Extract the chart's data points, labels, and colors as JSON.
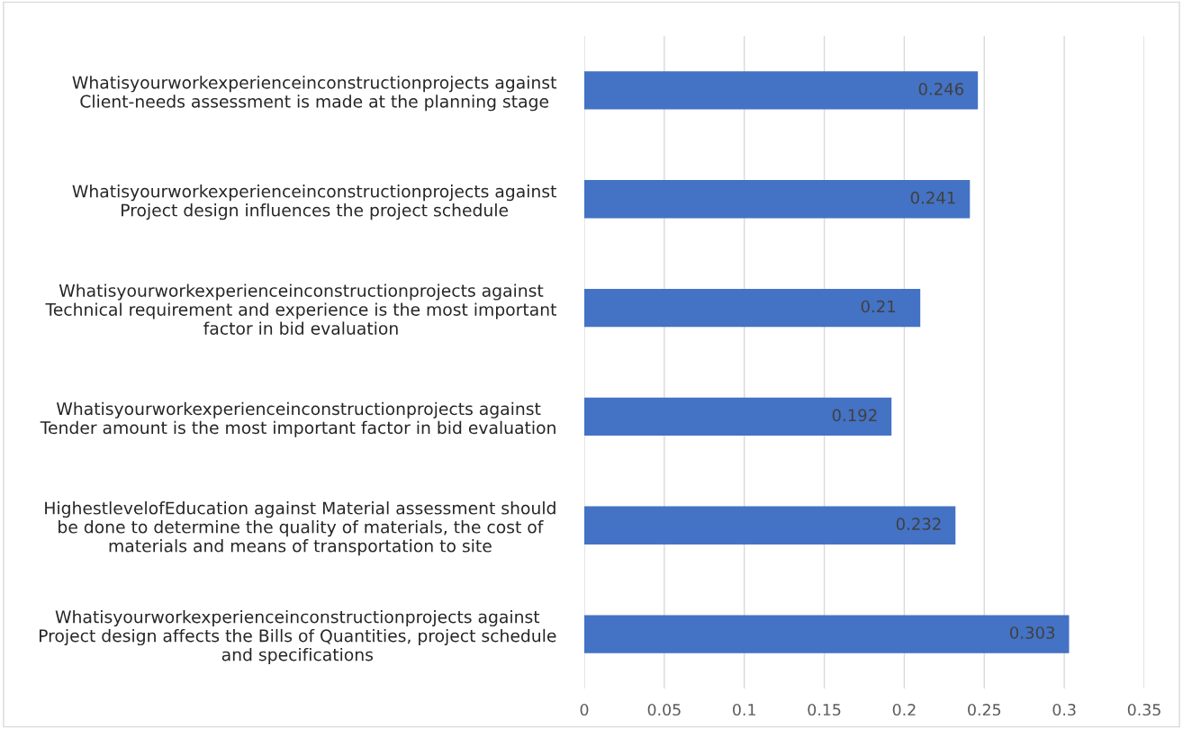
{
  "chart_data": {
    "type": "bar",
    "orientation": "horizontal",
    "categories": [
      "Whatisyourworkexperienceinconstructionprojects against\nClient-needs assessment is made at the planning stage",
      "Whatisyourworkexperienceinconstructionprojects against\nProject design influences the project schedule",
      "Whatisyourworkexperienceinconstructionprojects against\nTechnical requirement and experience is the most important\nfactor in bid evaluation",
      "Whatisyourworkexperienceinconstructionprojects against\nTender amount is the most important factor in bid evaluation",
      "HighestlevelofEducation against Material assessment should\nbe done to determine the quality of materials, the cost of\nmaterials and means of transportation to site",
      "Whatisyourworkexperienceinconstructionprojects against\nProject design affects the Bills of Quantities, project schedule\nand specifications"
    ],
    "values": [
      0.246,
      0.241,
      0.21,
      0.192,
      0.232,
      0.303
    ],
    "color": "#4472c4",
    "xlim": [
      0,
      0.35
    ],
    "xticks": [
      0,
      0.05,
      0.1,
      0.15,
      0.2,
      0.25,
      0.3,
      0.35
    ],
    "grid": "x",
    "data_labels": true
  }
}
